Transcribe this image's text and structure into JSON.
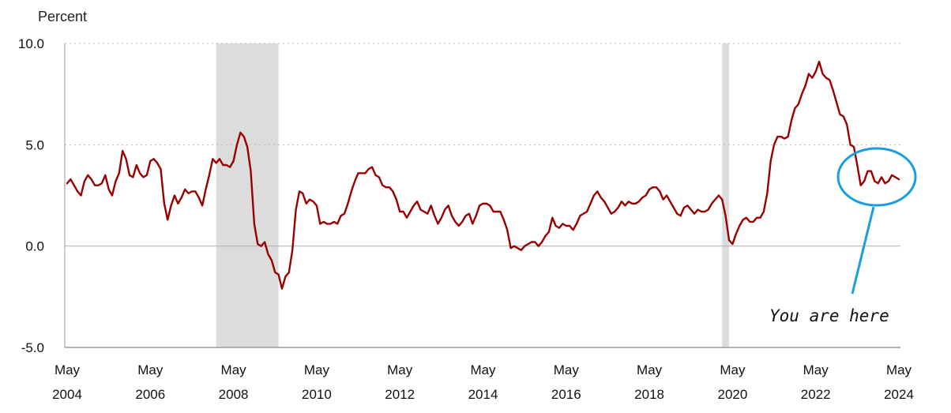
{
  "chart_data": {
    "type": "line",
    "ylabel": "Percent",
    "ylim": [
      -5,
      10
    ],
    "yticks": [
      {
        "value": 10,
        "label": "10.0"
      },
      {
        "value": 5,
        "label": "5.0"
      },
      {
        "value": 0,
        "label": "0.0"
      },
      {
        "value": -5,
        "label": "-5.0"
      }
    ],
    "grid": "horizontal dotted",
    "xticks": [
      {
        "date": "2004-05",
        "month": "May",
        "year": "2004"
      },
      {
        "date": "2006-05",
        "month": "May",
        "year": "2006"
      },
      {
        "date": "2008-05",
        "month": "May",
        "year": "2008"
      },
      {
        "date": "2010-05",
        "month": "May",
        "year": "2010"
      },
      {
        "date": "2012-05",
        "month": "May",
        "year": "2012"
      },
      {
        "date": "2014-05",
        "month": "May",
        "year": "2014"
      },
      {
        "date": "2016-05",
        "month": "May",
        "year": "2016"
      },
      {
        "date": "2018-05",
        "month": "May",
        "year": "2018"
      },
      {
        "date": "2020-05",
        "month": "May",
        "year": "2020"
      },
      {
        "date": "2022-05",
        "month": "May",
        "year": "2022"
      },
      {
        "date": "2024-05",
        "month": "May",
        "year": "2024"
      }
    ],
    "recessions": [
      {
        "start": "2007-12",
        "end": "2009-06"
      },
      {
        "start": "2020-02",
        "end": "2020-04"
      }
    ],
    "line_color": "#990000",
    "recession_color": "#dcdcdc",
    "annotation": {
      "text": "You are here",
      "color": "#1a9ee0"
    },
    "series": [
      {
        "points": [
          [
            "2004-05",
            3.1
          ],
          [
            "2004-06",
            3.3
          ],
          [
            "2004-07",
            3.0
          ],
          [
            "2004-08",
            2.7
          ],
          [
            "2004-09",
            2.5
          ],
          [
            "2004-10",
            3.2
          ],
          [
            "2004-11",
            3.5
          ],
          [
            "2004-12",
            3.3
          ],
          [
            "2005-01",
            3.0
          ],
          [
            "2005-02",
            3.0
          ],
          [
            "2005-03",
            3.1
          ],
          [
            "2005-04",
            3.5
          ],
          [
            "2005-05",
            2.8
          ],
          [
            "2005-06",
            2.5
          ],
          [
            "2005-07",
            3.2
          ],
          [
            "2005-08",
            3.6
          ],
          [
            "2005-09",
            4.7
          ],
          [
            "2005-10",
            4.3
          ],
          [
            "2005-11",
            3.5
          ],
          [
            "2005-12",
            3.4
          ],
          [
            "2006-01",
            4.0
          ],
          [
            "2006-02",
            3.6
          ],
          [
            "2006-03",
            3.4
          ],
          [
            "2006-04",
            3.5
          ],
          [
            "2006-05",
            4.2
          ],
          [
            "2006-06",
            4.3
          ],
          [
            "2006-07",
            4.1
          ],
          [
            "2006-08",
            3.8
          ],
          [
            "2006-09",
            2.1
          ],
          [
            "2006-10",
            1.3
          ],
          [
            "2006-11",
            2.0
          ],
          [
            "2006-12",
            2.5
          ],
          [
            "2007-01",
            2.1
          ],
          [
            "2007-02",
            2.4
          ],
          [
            "2007-03",
            2.8
          ],
          [
            "2007-04",
            2.6
          ],
          [
            "2007-05",
            2.7
          ],
          [
            "2007-06",
            2.7
          ],
          [
            "2007-07",
            2.4
          ],
          [
            "2007-08",
            2.0
          ],
          [
            "2007-09",
            2.8
          ],
          [
            "2007-10",
            3.5
          ],
          [
            "2007-11",
            4.3
          ],
          [
            "2007-12",
            4.1
          ],
          [
            "2008-01",
            4.3
          ],
          [
            "2008-02",
            4.0
          ],
          [
            "2008-03",
            4.0
          ],
          [
            "2008-04",
            3.9
          ],
          [
            "2008-05",
            4.2
          ],
          [
            "2008-06",
            5.0
          ],
          [
            "2008-07",
            5.6
          ],
          [
            "2008-08",
            5.4
          ],
          [
            "2008-09",
            4.9
          ],
          [
            "2008-10",
            3.7
          ],
          [
            "2008-11",
            1.1
          ],
          [
            "2008-12",
            0.1
          ],
          [
            "2009-01",
            0.0
          ],
          [
            "2009-02",
            0.2
          ],
          [
            "2009-03",
            -0.4
          ],
          [
            "2009-04",
            -0.7
          ],
          [
            "2009-05",
            -1.3
          ],
          [
            "2009-06",
            -1.4
          ],
          [
            "2009-07",
            -2.1
          ],
          [
            "2009-08",
            -1.5
          ],
          [
            "2009-09",
            -1.3
          ],
          [
            "2009-10",
            -0.2
          ],
          [
            "2009-11",
            1.8
          ],
          [
            "2009-12",
            2.7
          ],
          [
            "2010-01",
            2.6
          ],
          [
            "2010-02",
            2.1
          ],
          [
            "2010-03",
            2.3
          ],
          [
            "2010-04",
            2.2
          ],
          [
            "2010-05",
            2.0
          ],
          [
            "2010-06",
            1.1
          ],
          [
            "2010-07",
            1.2
          ],
          [
            "2010-08",
            1.1
          ],
          [
            "2010-09",
            1.1
          ],
          [
            "2010-10",
            1.2
          ],
          [
            "2010-11",
            1.1
          ],
          [
            "2010-12",
            1.5
          ],
          [
            "2011-01",
            1.6
          ],
          [
            "2011-02",
            2.1
          ],
          [
            "2011-03",
            2.7
          ],
          [
            "2011-04",
            3.2
          ],
          [
            "2011-05",
            3.6
          ],
          [
            "2011-06",
            3.6
          ],
          [
            "2011-07",
            3.6
          ],
          [
            "2011-08",
            3.8
          ],
          [
            "2011-09",
            3.9
          ],
          [
            "2011-10",
            3.5
          ],
          [
            "2011-11",
            3.4
          ],
          [
            "2011-12",
            3.0
          ],
          [
            "2012-01",
            2.9
          ],
          [
            "2012-02",
            2.9
          ],
          [
            "2012-03",
            2.7
          ],
          [
            "2012-04",
            2.3
          ],
          [
            "2012-05",
            1.7
          ],
          [
            "2012-06",
            1.7
          ],
          [
            "2012-07",
            1.4
          ],
          [
            "2012-08",
            1.7
          ],
          [
            "2012-09",
            2.0
          ],
          [
            "2012-10",
            2.2
          ],
          [
            "2012-11",
            1.8
          ],
          [
            "2012-12",
            1.7
          ],
          [
            "2013-01",
            1.6
          ],
          [
            "2013-02",
            2.0
          ],
          [
            "2013-03",
            1.5
          ],
          [
            "2013-04",
            1.1
          ],
          [
            "2013-05",
            1.4
          ],
          [
            "2013-06",
            1.8
          ],
          [
            "2013-07",
            2.0
          ],
          [
            "2013-08",
            1.5
          ],
          [
            "2013-09",
            1.2
          ],
          [
            "2013-10",
            1.0
          ],
          [
            "2013-11",
            1.2
          ],
          [
            "2013-12",
            1.5
          ],
          [
            "2014-01",
            1.6
          ],
          [
            "2014-02",
            1.1
          ],
          [
            "2014-03",
            1.5
          ],
          [
            "2014-04",
            2.0
          ],
          [
            "2014-05",
            2.1
          ],
          [
            "2014-06",
            2.1
          ],
          [
            "2014-07",
            2.0
          ],
          [
            "2014-08",
            1.7
          ],
          [
            "2014-09",
            1.7
          ],
          [
            "2014-10",
            1.7
          ],
          [
            "2014-11",
            1.3
          ],
          [
            "2014-12",
            0.8
          ],
          [
            "2015-01",
            -0.1
          ],
          [
            "2015-02",
            0.0
          ],
          [
            "2015-03",
            -0.1
          ],
          [
            "2015-04",
            -0.2
          ],
          [
            "2015-05",
            0.0
          ],
          [
            "2015-06",
            0.1
          ],
          [
            "2015-07",
            0.2
          ],
          [
            "2015-08",
            0.2
          ],
          [
            "2015-09",
            0.0
          ],
          [
            "2015-10",
            0.2
          ],
          [
            "2015-11",
            0.5
          ],
          [
            "2015-12",
            0.7
          ],
          [
            "2016-01",
            1.4
          ],
          [
            "2016-02",
            1.0
          ],
          [
            "2016-03",
            0.9
          ],
          [
            "2016-04",
            1.1
          ],
          [
            "2016-05",
            1.0
          ],
          [
            "2016-06",
            1.0
          ],
          [
            "2016-07",
            0.8
          ],
          [
            "2016-08",
            1.1
          ],
          [
            "2016-09",
            1.5
          ],
          [
            "2016-10",
            1.6
          ],
          [
            "2016-11",
            1.7
          ],
          [
            "2016-12",
            2.1
          ],
          [
            "2017-01",
            2.5
          ],
          [
            "2017-02",
            2.7
          ],
          [
            "2017-03",
            2.4
          ],
          [
            "2017-04",
            2.2
          ],
          [
            "2017-05",
            1.9
          ],
          [
            "2017-06",
            1.6
          ],
          [
            "2017-07",
            1.7
          ],
          [
            "2017-08",
            1.9
          ],
          [
            "2017-09",
            2.2
          ],
          [
            "2017-10",
            2.0
          ],
          [
            "2017-11",
            2.2
          ],
          [
            "2017-12",
            2.1
          ],
          [
            "2018-01",
            2.1
          ],
          [
            "2018-02",
            2.2
          ],
          [
            "2018-03",
            2.4
          ],
          [
            "2018-04",
            2.5
          ],
          [
            "2018-05",
            2.8
          ],
          [
            "2018-06",
            2.9
          ],
          [
            "2018-07",
            2.9
          ],
          [
            "2018-08",
            2.7
          ],
          [
            "2018-09",
            2.3
          ],
          [
            "2018-10",
            2.5
          ],
          [
            "2018-11",
            2.2
          ],
          [
            "2018-12",
            1.9
          ],
          [
            "2019-01",
            1.6
          ],
          [
            "2019-02",
            1.5
          ],
          [
            "2019-03",
            1.9
          ],
          [
            "2019-04",
            2.0
          ],
          [
            "2019-05",
            1.8
          ],
          [
            "2019-06",
            1.6
          ],
          [
            "2019-07",
            1.8
          ],
          [
            "2019-08",
            1.7
          ],
          [
            "2019-09",
            1.7
          ],
          [
            "2019-10",
            1.8
          ],
          [
            "2019-11",
            2.1
          ],
          [
            "2019-12",
            2.3
          ],
          [
            "2020-01",
            2.5
          ],
          [
            "2020-02",
            2.3
          ],
          [
            "2020-03",
            1.5
          ],
          [
            "2020-04",
            0.3
          ],
          [
            "2020-05",
            0.1
          ],
          [
            "2020-06",
            0.6
          ],
          [
            "2020-07",
            1.0
          ],
          [
            "2020-08",
            1.3
          ],
          [
            "2020-09",
            1.4
          ],
          [
            "2020-10",
            1.2
          ],
          [
            "2020-11",
            1.2
          ],
          [
            "2020-12",
            1.4
          ],
          [
            "2021-01",
            1.4
          ],
          [
            "2021-02",
            1.7
          ],
          [
            "2021-03",
            2.6
          ],
          [
            "2021-04",
            4.2
          ],
          [
            "2021-05",
            5.0
          ],
          [
            "2021-06",
            5.4
          ],
          [
            "2021-07",
            5.4
          ],
          [
            "2021-08",
            5.3
          ],
          [
            "2021-09",
            5.4
          ],
          [
            "2021-10",
            6.2
          ],
          [
            "2021-11",
            6.8
          ],
          [
            "2021-12",
            7.0
          ],
          [
            "2022-01",
            7.5
          ],
          [
            "2022-02",
            7.9
          ],
          [
            "2022-03",
            8.5
          ],
          [
            "2022-04",
            8.3
          ],
          [
            "2022-05",
            8.6
          ],
          [
            "2022-06",
            9.1
          ],
          [
            "2022-07",
            8.5
          ],
          [
            "2022-08",
            8.3
          ],
          [
            "2022-09",
            8.2
          ],
          [
            "2022-10",
            7.7
          ],
          [
            "2022-11",
            7.1
          ],
          [
            "2022-12",
            6.5
          ],
          [
            "2023-01",
            6.4
          ],
          [
            "2023-02",
            6.0
          ],
          [
            "2023-03",
            5.0
          ],
          [
            "2023-04",
            4.9
          ],
          [
            "2023-05",
            4.0
          ],
          [
            "2023-06",
            3.0
          ],
          [
            "2023-07",
            3.2
          ],
          [
            "2023-08",
            3.7
          ],
          [
            "2023-09",
            3.7
          ],
          [
            "2023-10",
            3.2
          ],
          [
            "2023-11",
            3.1
          ],
          [
            "2023-12",
            3.4
          ],
          [
            "2024-01",
            3.1
          ],
          [
            "2024-02",
            3.2
          ],
          [
            "2024-03",
            3.5
          ],
          [
            "2024-04",
            3.4
          ],
          [
            "2024-05",
            3.3
          ]
        ]
      }
    ]
  }
}
